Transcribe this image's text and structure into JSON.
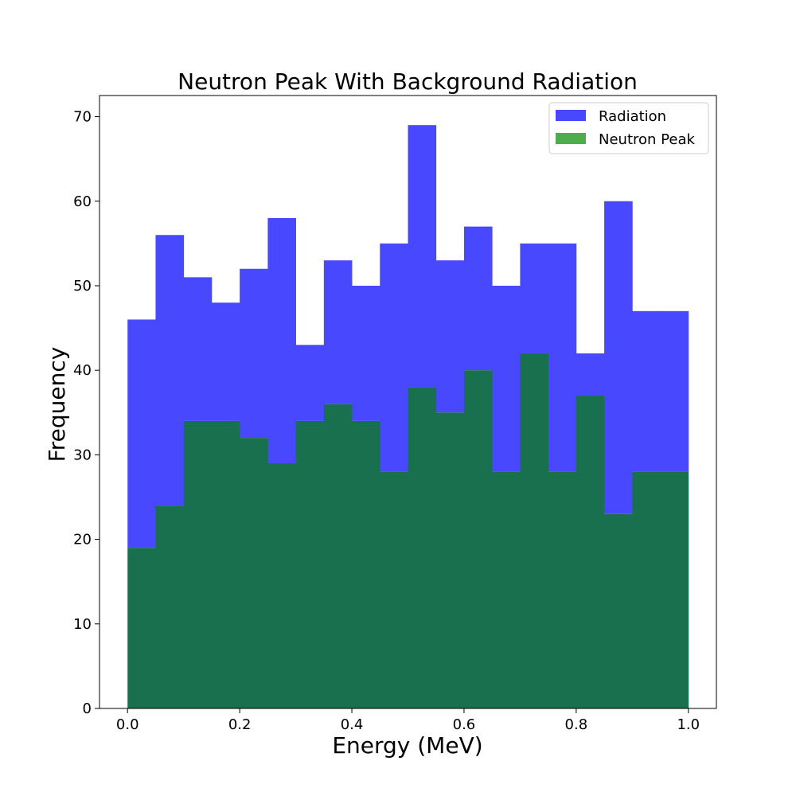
{
  "chart_data": {
    "type": "bar",
    "title": "Neutron Peak With Background Radiation",
    "xlabel": "Energy (MeV)",
    "ylabel": "Frequency",
    "xlim": [
      -0.05,
      1.05
    ],
    "ylim": [
      0,
      72.5
    ],
    "bin_edges": [
      0.0,
      0.05,
      0.1,
      0.15,
      0.2,
      0.25,
      0.3,
      0.35,
      0.4,
      0.45,
      0.5,
      0.55,
      0.6,
      0.65,
      0.7,
      0.75,
      0.8,
      0.85,
      0.9,
      0.95,
      1.0
    ],
    "x_ticks": [
      "0.0",
      "0.2",
      "0.4",
      "0.6",
      "0.8",
      "1.0"
    ],
    "y_ticks": [
      "0",
      "10",
      "20",
      "30",
      "40",
      "50",
      "60",
      "70"
    ],
    "grid": false,
    "legend_position": "top-right",
    "series": [
      {
        "name": "Radiation",
        "color": "#4848ff",
        "values": [
          46,
          56,
          51,
          48,
          52,
          58,
          43,
          53,
          50,
          55,
          69,
          53,
          57,
          50,
          55,
          55,
          42,
          60,
          47,
          47
        ]
      },
      {
        "name": "Neutron Peak",
        "color": "#4eab4e",
        "overlap_color": "#18704e",
        "values": [
          19,
          24,
          34,
          34,
          32,
          29,
          34,
          36,
          34,
          28,
          38,
          35,
          40,
          28,
          42,
          28,
          37,
          23,
          28,
          28
        ]
      }
    ]
  }
}
